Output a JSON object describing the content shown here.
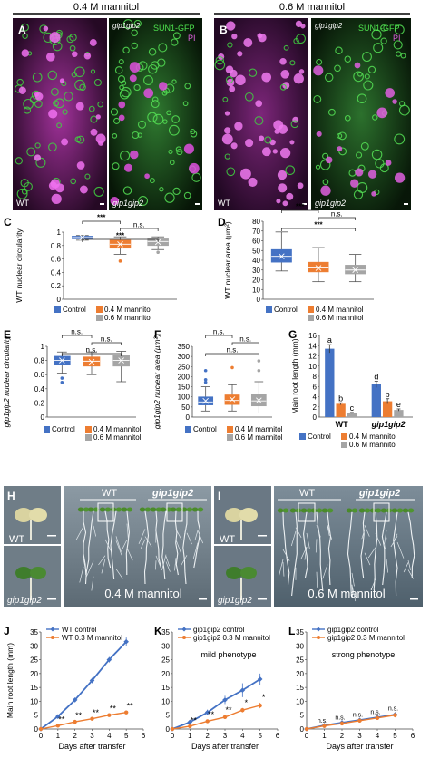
{
  "header": {
    "left_condition": "0.4 M mannitol",
    "right_condition": "0.6 M mannitol"
  },
  "micrographs": {
    "panel_A": "A",
    "panel_B": "B",
    "channel_sun1": "SUN1-GFP",
    "channel_pi": "PI",
    "wt_label": "WT",
    "mutant_label": "gip1gip2"
  },
  "colors": {
    "control": "#4472c4",
    "m04": "#ed7d31",
    "m06": "#a5a5a5",
    "wt_ctrl_line": "#4472c4",
    "mannitol_line": "#ed7d31"
  },
  "legend": {
    "control": "Control",
    "m04": "0.4 M mannitol",
    "m06": "0.6 M mannitol"
  },
  "chart_data": [
    {
      "id": "C",
      "type": "box",
      "panel": "C",
      "ylabel": "WT nuclear circularity",
      "ylim": [
        0,
        1
      ],
      "yticks": [
        "0",
        "0.2",
        "0.4",
        "0.6",
        "0.8",
        "1"
      ],
      "boxes": [
        {
          "name": "Control",
          "min": 0.88,
          "q1": 0.9,
          "median": 0.92,
          "q3": 0.94,
          "max": 0.95,
          "mean": 0.92,
          "outliers": []
        },
        {
          "name": "0.4 M mannitol",
          "min": 0.67,
          "q1": 0.76,
          "median": 0.82,
          "q3": 0.88,
          "max": 0.93,
          "mean": 0.82,
          "outliers": [
            0.57
          ]
        },
        {
          "name": "0.6 M mannitol",
          "min": 0.74,
          "q1": 0.8,
          "median": 0.86,
          "q3": 0.9,
          "max": 0.93,
          "mean": 0.85,
          "outliers": [
            0.7
          ]
        }
      ],
      "significance": [
        {
          "from": 0,
          "to": 1,
          "text": "***"
        },
        {
          "from": 1,
          "to": 2,
          "text": "n.s."
        },
        {
          "from": 0,
          "to": 2,
          "text": "***"
        }
      ]
    },
    {
      "id": "D",
      "type": "box",
      "panel": "D",
      "ylabel": "WT nuclear area (µm²)",
      "ylim": [
        0,
        80
      ],
      "yticks": [
        "0",
        "10",
        "20",
        "30",
        "40",
        "50",
        "60",
        "70",
        "80"
      ],
      "boxes": [
        {
          "name": "Control",
          "min": 29,
          "q1": 38,
          "median": 44,
          "q3": 51,
          "max": 69,
          "mean": 44,
          "outliers": []
        },
        {
          "name": "0.4 M mannitol",
          "min": 18,
          "q1": 28,
          "median": 32,
          "q3": 38,
          "max": 53,
          "mean": 32,
          "outliers": []
        },
        {
          "name": "0.6 M mannitol",
          "min": 18,
          "q1": 26,
          "median": 30,
          "q3": 35,
          "max": 46,
          "mean": 30,
          "outliers": []
        }
      ],
      "significance": [
        {
          "from": 0,
          "to": 1,
          "text": "***"
        },
        {
          "from": 1,
          "to": 2,
          "text": "n.s."
        },
        {
          "from": 0,
          "to": 2,
          "text": "***"
        }
      ]
    },
    {
      "id": "E",
      "type": "box",
      "panel": "E",
      "ylabel": "gip1gip2 nuclear circularity",
      "ylim": [
        0,
        1
      ],
      "yticks": [
        "0",
        "0.2",
        "0.4",
        "0.6",
        "0.8",
        "1"
      ],
      "boxes": [
        {
          "name": "Control",
          "min": 0.62,
          "q1": 0.74,
          "median": 0.8,
          "q3": 0.86,
          "max": 0.92,
          "mean": 0.8,
          "outliers": [
            0.55,
            0.49
          ]
        },
        {
          "name": "0.4 M mannitol",
          "min": 0.6,
          "q1": 0.72,
          "median": 0.79,
          "q3": 0.85,
          "max": 0.92,
          "mean": 0.78,
          "outliers": []
        },
        {
          "name": "0.6 M mannitol",
          "min": 0.5,
          "q1": 0.72,
          "median": 0.8,
          "q3": 0.87,
          "max": 0.93,
          "mean": 0.8,
          "outliers": []
        }
      ],
      "significance": [
        {
          "from": 0,
          "to": 1,
          "text": "n.s."
        },
        {
          "from": 1,
          "to": 2,
          "text": "n.s."
        },
        {
          "from": 0,
          "to": 2,
          "text": "n.s."
        }
      ]
    },
    {
      "id": "F",
      "type": "box",
      "panel": "F",
      "ylabel": "gip1gip2 nuclear area (µm²)",
      "ylim": [
        0,
        350
      ],
      "yticks": [
        "0",
        "50",
        "100",
        "150",
        "200",
        "250",
        "300",
        "350"
      ],
      "boxes": [
        {
          "name": "Control",
          "min": 30,
          "q1": 60,
          "median": 75,
          "q3": 100,
          "max": 150,
          "mean": 80,
          "outliers": [
            230,
            185,
            172
          ]
        },
        {
          "name": "0.4 M mannitol",
          "min": 30,
          "q1": 62,
          "median": 82,
          "q3": 110,
          "max": 160,
          "mean": 88,
          "outliers": [
            245
          ]
        },
        {
          "name": "0.6 M mannitol",
          "min": 20,
          "q1": 55,
          "median": 80,
          "q3": 115,
          "max": 175,
          "mean": 82,
          "outliers": [
            278,
            230
          ]
        }
      ],
      "significance": [
        {
          "from": 0,
          "to": 1,
          "text": "n.s."
        },
        {
          "from": 1,
          "to": 2,
          "text": "n.s."
        },
        {
          "from": 0,
          "to": 2,
          "text": "n.s."
        }
      ]
    },
    {
      "id": "G",
      "type": "bar",
      "panel": "G",
      "ylabel": "Main root length (mm)",
      "ylim": [
        0,
        16
      ],
      "yticks": [
        "0",
        "2",
        "4",
        "6",
        "8",
        "10",
        "12",
        "14",
        "16"
      ],
      "categories": [
        "WT",
        "gip1gip2"
      ],
      "series": [
        {
          "name": "Control",
          "values": [
            13.4,
            6.4
          ],
          "errors": [
            0.8,
            0.6
          ],
          "letters": [
            "a",
            "d"
          ]
        },
        {
          "name": "0.4 M mannitol",
          "values": [
            2.6,
            3.1
          ],
          "errors": [
            0.2,
            0.5
          ],
          "letters": [
            "b",
            "b"
          ]
        },
        {
          "name": "0.6 M mannitol",
          "values": [
            0.8,
            1.4
          ],
          "errors": [
            0.1,
            0.2
          ],
          "letters": [
            "c",
            "e"
          ]
        }
      ]
    },
    {
      "id": "J",
      "type": "line",
      "panel": "J",
      "xlabel": "Days after transfer",
      "ylabel": "Main root length (mm)",
      "xlim": [
        0,
        6
      ],
      "ylim": [
        0,
        35
      ],
      "xticks": [
        "0",
        "1",
        "2",
        "3",
        "4",
        "5",
        "6"
      ],
      "yticks": [
        "0",
        "5",
        "10",
        "15",
        "20",
        "25",
        "30",
        "35"
      ],
      "series": [
        {
          "name": "WT control",
          "x": [
            0,
            1,
            2,
            3,
            4,
            5
          ],
          "y": [
            0,
            4.5,
            10.5,
            17.5,
            25,
            31.5
          ],
          "errors": [
            0,
            0.6,
            0.8,
            1.0,
            1.0,
            1.5
          ]
        },
        {
          "name": "WT 0.3 M mannitol",
          "x": [
            0,
            1,
            2,
            3,
            4,
            5
          ],
          "y": [
            0,
            1.2,
            2.6,
            3.7,
            5.0,
            6.0
          ],
          "errors": [
            0,
            0.2,
            0.3,
            0.3,
            0.4,
            0.4
          ]
        }
      ],
      "annotations": [
        "**",
        "**",
        "**",
        "**",
        "**"
      ]
    },
    {
      "id": "K",
      "type": "line",
      "panel": "K",
      "xlabel": "Days after transfer",
      "note": "mild phenotype",
      "xlim": [
        0,
        6
      ],
      "ylim": [
        0,
        35
      ],
      "xticks": [
        "0",
        "1",
        "2",
        "3",
        "4",
        "5",
        "6"
      ],
      "yticks": [
        "0",
        "5",
        "10",
        "15",
        "20",
        "25",
        "30",
        "35"
      ],
      "series": [
        {
          "name": "gip1gip2 control",
          "x": [
            0,
            1,
            2,
            3,
            4,
            5
          ],
          "y": [
            0,
            2.5,
            6.0,
            10.5,
            14.0,
            18.0
          ],
          "errors": [
            0,
            0.5,
            1.0,
            1.5,
            2.5,
            2.0
          ]
        },
        {
          "name": "gip1gip2 0.3 M mannitol",
          "x": [
            0,
            1,
            2,
            3,
            4,
            5
          ],
          "y": [
            0,
            1.0,
            2.8,
            4.3,
            6.8,
            8.5
          ],
          "errors": [
            0,
            0.2,
            0.4,
            0.6,
            0.8,
            1.0
          ]
        }
      ],
      "annotations": [
        "**",
        "**",
        "**",
        "*",
        "*"
      ]
    },
    {
      "id": "L",
      "type": "line",
      "panel": "L",
      "xlabel": "Days after transfer",
      "note": "strong phenotype",
      "xlim": [
        0,
        6
      ],
      "ylim": [
        0,
        35
      ],
      "xticks": [
        "0",
        "1",
        "2",
        "3",
        "4",
        "5",
        "6"
      ],
      "yticks": [
        "0",
        "5",
        "10",
        "15",
        "20",
        "25",
        "30",
        "35"
      ],
      "series": [
        {
          "name": "gip1gip2 control",
          "x": [
            0,
            1,
            2,
            3,
            4,
            5
          ],
          "y": [
            0,
            1.3,
            2.3,
            3.2,
            4.2,
            5.2
          ],
          "errors": [
            0,
            0.3,
            0.4,
            0.5,
            0.6,
            0.8
          ]
        },
        {
          "name": "gip1gip2 0.3 M mannitol",
          "x": [
            0,
            1,
            2,
            3,
            4,
            5
          ],
          "y": [
            0,
            1.1,
            2.0,
            3.0,
            4.0,
            5.0
          ],
          "errors": [
            0,
            0.3,
            0.4,
            0.5,
            0.6,
            0.8
          ]
        }
      ],
      "annotations": [
        "n.s.",
        "n.s.",
        "n.s.",
        "n.s.",
        "n.s."
      ]
    }
  ],
  "seedlings": {
    "panel_H": "H",
    "panel_I": "I",
    "wt": "WT",
    "mutant": "gip1gip2",
    "cond_H": "0.4 M mannitol",
    "cond_I": "0.6 M mannitol"
  }
}
